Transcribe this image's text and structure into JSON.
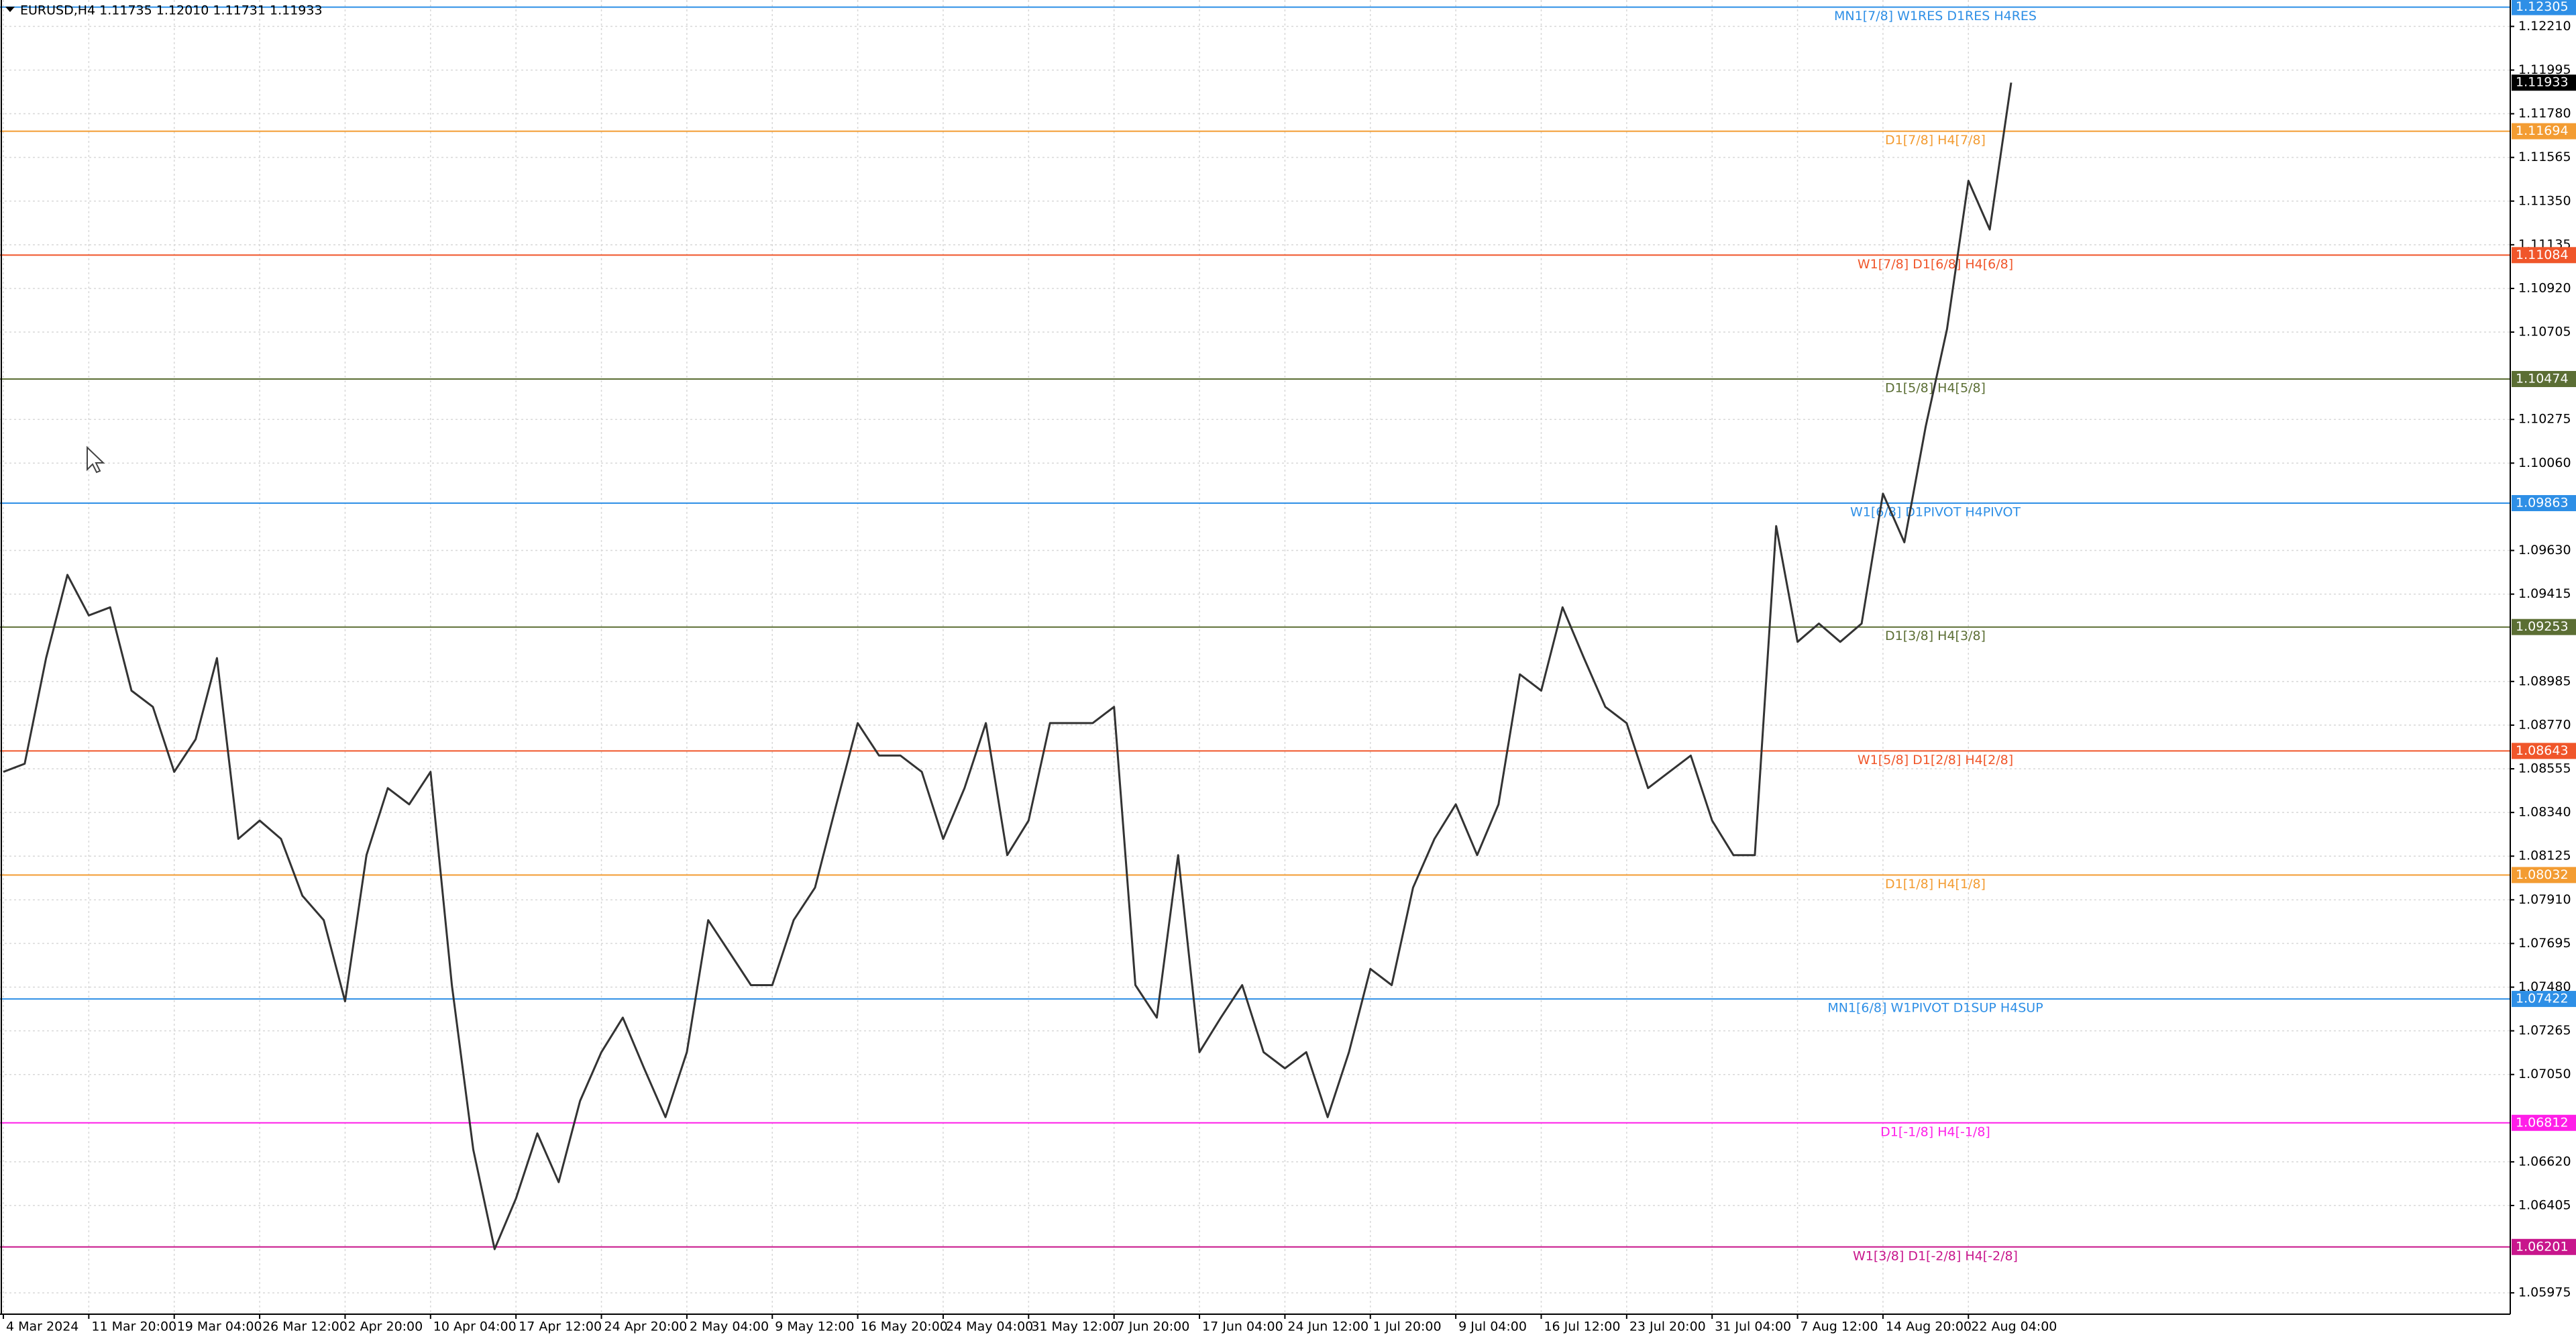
{
  "chart_data": {
    "type": "line",
    "title": "EURUSD,H4  1.11735 1.12010 1.11731 1.11933",
    "color": "#333333",
    "categories": [
      "4 Mar 2024",
      null,
      null,
      null,
      "11 Mar 20:00",
      null,
      null,
      null,
      "19 Mar 04:00",
      null,
      null,
      null,
      "26 Mar 12:00",
      null,
      null,
      null,
      "2 Apr 20:00",
      null,
      null,
      null,
      "10 Apr 04:00",
      null,
      null,
      null,
      "17 Apr 12:00",
      null,
      null,
      null,
      "24 Apr 20:00",
      null,
      null,
      null,
      "2 May 04:00",
      null,
      null,
      null,
      "9 May 12:00",
      null,
      null,
      null,
      "16 May 20:00",
      null,
      null,
      null,
      "24 May 04:00",
      null,
      null,
      null,
      "31 May 12:00",
      null,
      null,
      null,
      "7 Jun 20:00",
      null,
      null,
      null,
      "17 Jun 04:00",
      null,
      null,
      null,
      "24 Jun 12:00",
      null,
      null,
      null,
      "1 Jul 20:00",
      null,
      null,
      null,
      "9 Jul 04:00",
      null,
      null,
      null,
      "16 Jul 12:00",
      null,
      null,
      null,
      "23 Jul 20:00",
      null,
      null,
      null,
      "31 Jul 04:00",
      null,
      null,
      null,
      "7 Aug 12:00",
      null,
      null,
      null,
      "14 Aug 20:00",
      null,
      null,
      null,
      "22 Aug 04:00",
      null,
      null
    ],
    "values": [
      1.0854,
      1.0858,
      1.091,
      1.0951,
      1.0931,
      1.0935,
      1.0894,
      1.0886,
      1.0854,
      1.087,
      1.091,
      1.0821,
      1.083,
      1.0821,
      1.0793,
      1.0781,
      1.0741,
      1.0813,
      1.0846,
      1.0838,
      1.0854,
      1.0749,
      1.0668,
      1.0619,
      1.0644,
      1.0676,
      1.0652,
      1.0692,
      1.0716,
      1.0733,
      1.0708,
      1.0684,
      1.0716,
      1.0781,
      1.0765,
      1.0749,
      1.0749,
      1.0781,
      1.0797,
      1.0838,
      1.0878,
      1.0862,
      1.0862,
      1.0854,
      1.0821,
      1.0846,
      1.0878,
      1.0813,
      1.083,
      1.0878,
      1.0878,
      1.0878,
      1.0886,
      1.0749,
      1.0733,
      1.0813,
      1.0716,
      1.0733,
      1.0749,
      1.0716,
      1.0708,
      1.0716,
      1.0684,
      1.0716,
      1.0757,
      1.0749,
      1.0797,
      1.0821,
      1.0838,
      1.0813,
      1.0838,
      1.0902,
      1.0894,
      1.0935,
      1.091,
      1.0886,
      1.0878,
      1.0846,
      1.0854,
      1.0862,
      1.083,
      1.0813,
      1.0813,
      1.0975,
      1.0918,
      1.0927,
      1.0918,
      1.0927,
      1.0991,
      1.0967,
      1.1024,
      1.1072,
      1.1145,
      1.1121,
      1.11933
    ],
    "ylim": [
      1.0587,
      1.1234
    ],
    "yticks": [
      {
        "value": 1.1221,
        "label": "1.12210"
      },
      {
        "value": 1.11995,
        "label": "1.11995"
      },
      {
        "value": 1.1178,
        "label": "1.11780"
      },
      {
        "value": 1.11565,
        "label": "1.11565"
      },
      {
        "value": 1.1135,
        "label": "1.11350"
      },
      {
        "value": 1.11135,
        "label": "1.11135"
      },
      {
        "value": 1.1092,
        "label": "1.10920"
      },
      {
        "value": 1.10705,
        "label": "1.10705"
      },
      {
        "value": 1.10275,
        "label": "1.10275"
      },
      {
        "value": 1.1006,
        "label": "1.10060"
      },
      {
        "value": 1.0963,
        "label": "1.09630"
      },
      {
        "value": 1.09415,
        "label": "1.09415"
      },
      {
        "value": 1.08985,
        "label": "1.08985"
      },
      {
        "value": 1.0877,
        "label": "1.08770"
      },
      {
        "value": 1.08555,
        "label": "1.08555"
      },
      {
        "value": 1.0834,
        "label": "1.08340"
      },
      {
        "value": 1.08125,
        "label": "1.08125"
      },
      {
        "value": 1.0791,
        "label": "1.07910"
      },
      {
        "value": 1.07695,
        "label": "1.07695"
      },
      {
        "value": 1.0748,
        "label": "1.07480"
      },
      {
        "value": 1.07265,
        "label": "1.07265"
      },
      {
        "value": 1.0705,
        "label": "1.07050"
      },
      {
        "value": 1.0662,
        "label": "1.06620"
      },
      {
        "value": 1.06405,
        "label": "1.06405"
      },
      {
        "value": 1.05975,
        "label": "1.05975"
      }
    ],
    "grid": true,
    "levels": [
      {
        "value": 1.12305,
        "label": "MN1[7/8] W1RES D1RES H4RES",
        "color": "#2e8fe6"
      },
      {
        "value": 1.11694,
        "label": "D1[7/8] H4[7/8]",
        "color": "#f39c32"
      },
      {
        "value": 1.11084,
        "label": "W1[7/8] D1[6/8] H4[6/8]",
        "color": "#f0562a"
      },
      {
        "value": 1.10474,
        "label": "D1[5/8] H4[5/8]",
        "color": "#5b6e34"
      },
      {
        "value": 1.09863,
        "label": "W1[6/8] D1PIVOT H4PIVOT",
        "color": "#2e8fe6"
      },
      {
        "value": 1.09253,
        "label": "D1[3/8] H4[3/8]",
        "color": "#5b6e34"
      },
      {
        "value": 1.08643,
        "label": "W1[5/8] D1[2/8] H4[2/8]",
        "color": "#f0562a"
      },
      {
        "value": 1.08032,
        "label": "D1[1/8] H4[1/8]",
        "color": "#f39c32"
      },
      {
        "value": 1.07422,
        "label": "MN1[6/8] W1PIVOT D1SUP H4SUP",
        "color": "#2e8fe6"
      },
      {
        "value": 1.06812,
        "label": "D1[-1/8] H4[-1/8]",
        "color": "#ff1fe8"
      },
      {
        "value": 1.06201,
        "label": "W1[3/8] D1[-2/8] H4[-2/8]",
        "color": "#c8168c"
      }
    ],
    "current_price": {
      "value": 1.11933,
      "color": "#000000"
    }
  }
}
